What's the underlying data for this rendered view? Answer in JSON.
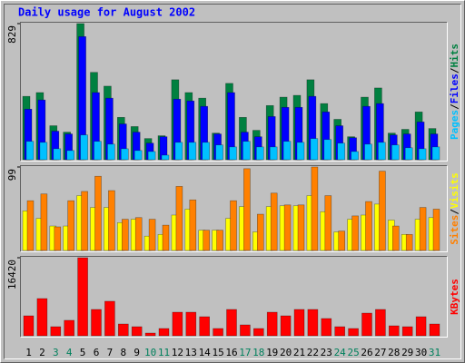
{
  "title": "Daily usage for August 2002",
  "legend_separator": "/",
  "chart_data": [
    {
      "type": "bar",
      "ylim": [
        0,
        829
      ],
      "yticks": [
        829
      ],
      "series": [
        {
          "name": "Hits",
          "color": "#008040",
          "values": [
            386,
            409,
            207,
            168,
            829,
            532,
            448,
            258,
            202,
            129,
            146,
            487,
            409,
            375,
            162,
            465,
            258,
            179,
            330,
            381,
            392,
            487,
            342,
            246,
            140,
            381,
            437,
            162,
            185,
            291,
            190
          ]
        },
        {
          "name": "Files",
          "color": "#0000ff",
          "values": [
            308,
            364,
            174,
            157,
            750,
            409,
            375,
            218,
            168,
            101,
            140,
            369,
            358,
            325,
            157,
            409,
            168,
            140,
            263,
            319,
            319,
            386,
            291,
            207,
            134,
            325,
            342,
            151,
            157,
            230,
            157
          ]
        },
        {
          "name": "Pages",
          "color": "#00c0ff",
          "values": [
            112,
            106,
            67,
            56,
            151,
            112,
            95,
            67,
            56,
            50,
            28,
            106,
            106,
            106,
            90,
            78,
            112,
            78,
            78,
            112,
            106,
            129,
            123,
            101,
            50,
            95,
            106,
            90,
            73,
            67,
            78
          ]
        }
      ]
    },
    {
      "type": "bar",
      "ylim": [
        0,
        99
      ],
      "yticks": [
        99
      ],
      "series": [
        {
          "name": "Visits",
          "color": "#ffff00",
          "values": [
            47,
            38,
            29,
            29,
            65,
            51,
            51,
            33,
            37,
            17,
            19,
            42,
            49,
            24,
            24,
            38,
            52,
            22,
            52,
            53,
            53,
            65,
            46,
            22,
            37,
            42,
            55,
            36,
            19,
            37,
            39
          ]
        },
        {
          "name": "Sites",
          "color": "#ff8000",
          "values": [
            59,
            67,
            28,
            59,
            70,
            88,
            71,
            37,
            39,
            37,
            30,
            76,
            60,
            24,
            24,
            59,
            97,
            43,
            68,
            54,
            54,
            99,
            65,
            23,
            41,
            58,
            94,
            29,
            19,
            51,
            49
          ]
        }
      ]
    },
    {
      "type": "bar",
      "ylim": [
        0,
        16420
      ],
      "yticks": [
        16420
      ],
      "categories": [
        "1",
        "2",
        "3",
        "4",
        "5",
        "6",
        "7",
        "8",
        "9",
        "10",
        "11",
        "12",
        "13",
        "14",
        "15",
        "16",
        "17",
        "18",
        "19",
        "20",
        "21",
        "22",
        "23",
        "24",
        "25",
        "26",
        "27",
        "28",
        "29",
        "30",
        "31"
      ],
      "category_colors": [
        "#000000",
        "#000000",
        "#00805c",
        "#00805c",
        "#000000",
        "#000000",
        "#000000",
        "#000000",
        "#000000",
        "#00805c",
        "#00805c",
        "#000000",
        "#000000",
        "#000000",
        "#000000",
        "#000000",
        "#00805c",
        "#00805c",
        "#000000",
        "#000000",
        "#000000",
        "#000000",
        "#000000",
        "#00805c",
        "#00805c",
        "#000000",
        "#000000",
        "#000000",
        "#000000",
        "#000000",
        "#00805c"
      ],
      "series": [
        {
          "name": "KBytes",
          "color": "#ff0000",
          "values": [
            4200,
            7830,
            1910,
            3250,
            16420,
            5540,
            7260,
            2480,
            1910,
            570,
            1530,
            4960,
            4960,
            4010,
            1530,
            5540,
            2290,
            1530,
            4960,
            4200,
            5540,
            5540,
            3630,
            1910,
            1530,
            4770,
            5540,
            2100,
            1910,
            4010,
            2480
          ]
        }
      ]
    }
  ]
}
